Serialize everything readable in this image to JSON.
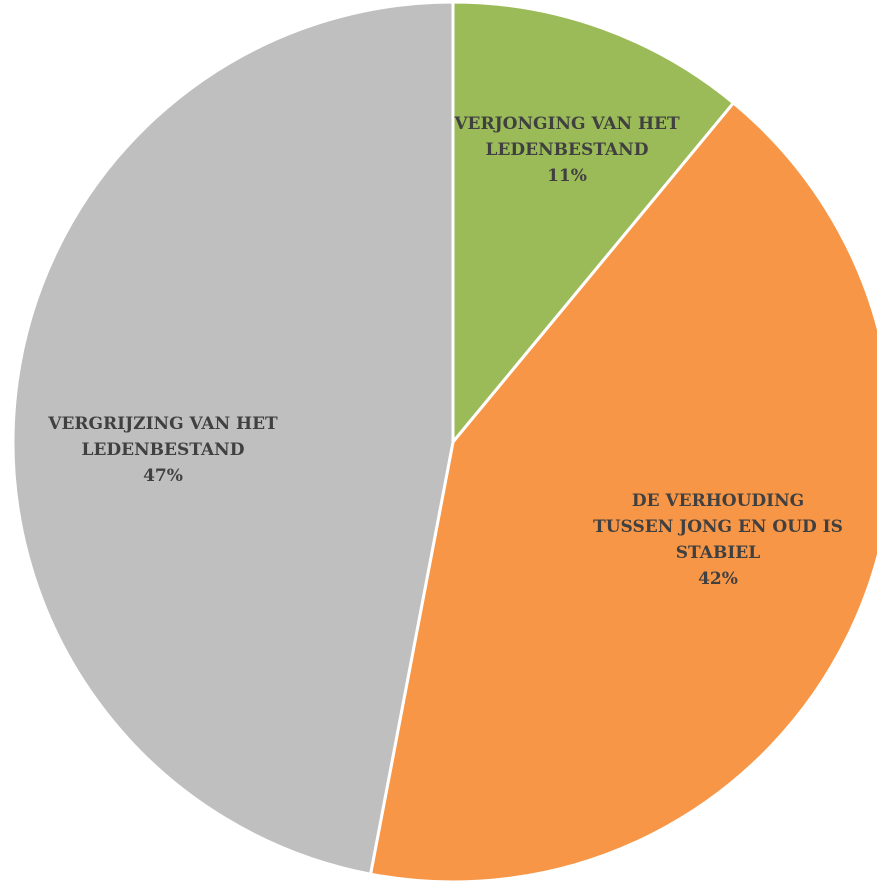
{
  "chart_data": {
    "type": "pie",
    "categories": [
      "VERJONGING VAN HET LEDENBESTAND",
      "DE VERHOUDING TUSSEN JONG EN OUD IS STABIEL",
      "VERGRIJZING VAN HET LEDENBESTAND"
    ],
    "values": [
      11,
      42,
      47
    ],
    "value_labels": [
      "11%",
      "42%",
      "47%"
    ],
    "colors": [
      "#9bbb59",
      "#f79646",
      "#bfbfbf"
    ]
  }
}
